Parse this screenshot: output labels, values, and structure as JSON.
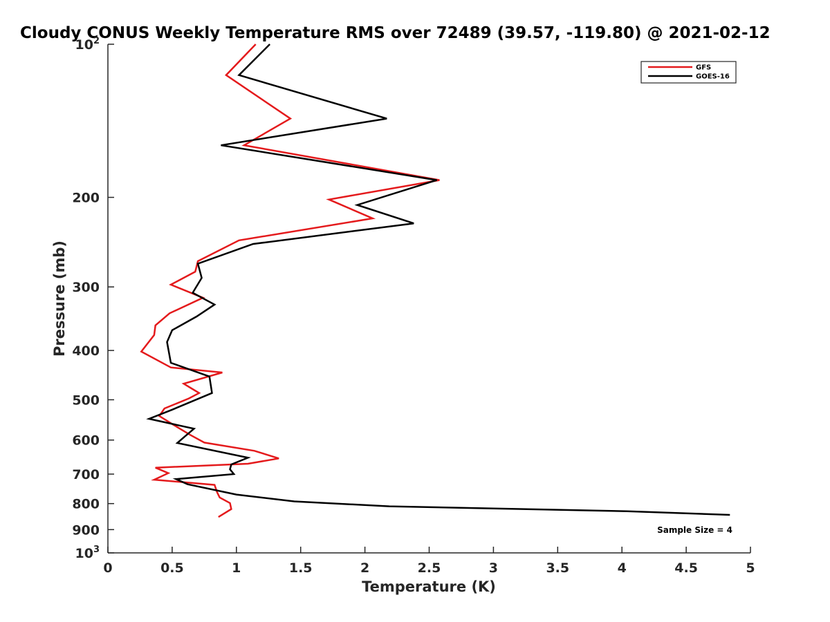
{
  "chart_data": {
    "type": "line",
    "title": "Cloudy CONUS Weekly Temperature RMS over 72489 (39.57, -119.80) @ 2021-02-12",
    "xlabel": "Temperature (K)",
    "ylabel": "Pressure (mb)",
    "xlim": [
      0,
      5
    ],
    "ylim": [
      100,
      1000
    ],
    "y_scale": "log",
    "y_reversed": true,
    "grid": false,
    "legend_position": "top-right",
    "xticks": [
      0,
      0.5,
      1,
      1.5,
      2,
      2.5,
      3,
      3.5,
      4,
      4.5,
      5
    ],
    "xtick_labels": [
      "0",
      "0.5",
      "1",
      "1.5",
      "2",
      "2.5",
      "3",
      "3.5",
      "4",
      "4.5",
      "5"
    ],
    "yticks": [
      100,
      200,
      300,
      400,
      500,
      600,
      700,
      800,
      900,
      1000
    ],
    "ytick_labels": [
      {
        "base": "10",
        "exp": "2"
      },
      {
        "base": "200",
        "exp": ""
      },
      {
        "base": "300",
        "exp": ""
      },
      {
        "base": "400",
        "exp": ""
      },
      {
        "base": "500",
        "exp": ""
      },
      {
        "base": "600",
        "exp": ""
      },
      {
        "base": "700",
        "exp": ""
      },
      {
        "base": "800",
        "exp": ""
      },
      {
        "base": "900",
        "exp": ""
      },
      {
        "base": "10",
        "exp": "3"
      }
    ],
    "annotation": "Sample Size = 4",
    "series": [
      {
        "name": "GFS",
        "color": "#e41a1c",
        "points": [
          [
            1.15,
            100
          ],
          [
            0.92,
            115
          ],
          [
            1.42,
            140
          ],
          [
            1.06,
            158
          ],
          [
            2.58,
            185
          ],
          [
            1.72,
            202
          ],
          [
            2.06,
            220
          ],
          [
            1.02,
            243
          ],
          [
            0.7,
            267
          ],
          [
            0.68,
            280
          ],
          [
            0.49,
            297
          ],
          [
            0.74,
            315
          ],
          [
            0.48,
            338
          ],
          [
            0.37,
            357
          ],
          [
            0.36,
            373
          ],
          [
            0.26,
            402
          ],
          [
            0.49,
            432
          ],
          [
            0.89,
            442
          ],
          [
            0.59,
            465
          ],
          [
            0.65,
            475
          ],
          [
            0.71,
            485
          ],
          [
            0.63,
            497
          ],
          [
            0.44,
            520
          ],
          [
            0.4,
            538
          ],
          [
            0.51,
            560
          ],
          [
            0.64,
            586
          ],
          [
            0.75,
            607
          ],
          [
            1.14,
            630
          ],
          [
            1.33,
            652
          ],
          [
            1.09,
            668
          ],
          [
            0.37,
            680
          ],
          [
            0.47,
            697
          ],
          [
            0.36,
            718
          ],
          [
            0.83,
            735
          ],
          [
            0.85,
            760
          ],
          [
            0.87,
            778
          ],
          [
            0.95,
            798
          ],
          [
            0.96,
            820
          ],
          [
            0.86,
            850
          ]
        ]
      },
      {
        "name": "GOES-16",
        "color": "#000000",
        "points": [
          [
            1.26,
            100
          ],
          [
            1.02,
            115
          ],
          [
            2.17,
            140
          ],
          [
            0.88,
            158
          ],
          [
            2.56,
            185
          ],
          [
            1.94,
            207
          ],
          [
            2.38,
            225
          ],
          [
            1.13,
            247
          ],
          [
            0.7,
            270
          ],
          [
            0.73,
            288
          ],
          [
            0.66,
            308
          ],
          [
            0.83,
            325
          ],
          [
            0.69,
            343
          ],
          [
            0.5,
            365
          ],
          [
            0.46,
            385
          ],
          [
            0.49,
            423
          ],
          [
            0.79,
            450
          ],
          [
            0.81,
            485
          ],
          [
            0.5,
            523
          ],
          [
            0.32,
            545
          ],
          [
            0.67,
            570
          ],
          [
            0.6,
            590
          ],
          [
            0.54,
            608
          ],
          [
            1.09,
            650
          ],
          [
            0.96,
            670
          ],
          [
            0.95,
            685
          ],
          [
            0.98,
            700
          ],
          [
            0.53,
            716
          ],
          [
            0.62,
            733
          ],
          [
            1.0,
            768
          ],
          [
            1.45,
            792
          ],
          [
            2.19,
            810
          ],
          [
            4.04,
            828
          ],
          [
            4.84,
            842
          ]
        ]
      }
    ]
  }
}
